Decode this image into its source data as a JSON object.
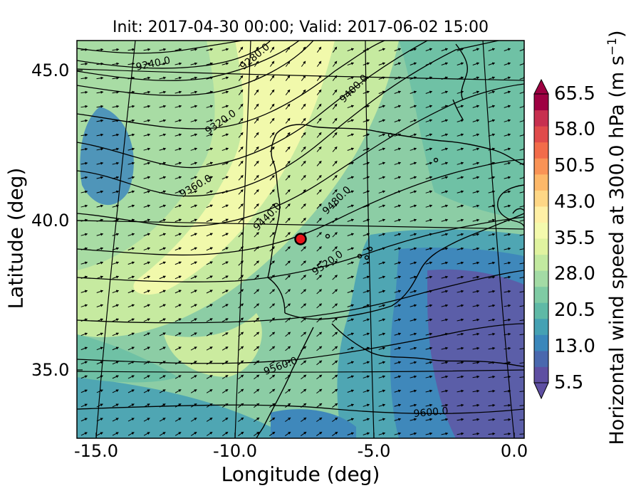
{
  "title": "Init: 2017-04-30 00:00; Valid: 2017-06-02 15:00",
  "xlabel": "Longitude (deg)",
  "ylabel": "Latitude (deg)",
  "colorbar": {
    "label_main": "Horizontal wind speed at 300.0 hPa (m s",
    "label_sup": "−1",
    "label_close": ")",
    "ticks": [
      "65.5",
      "58.0",
      "50.5",
      "43.0",
      "35.5",
      "28.0",
      "20.5",
      "13.0",
      "5.5"
    ],
    "colors": [
      "#5e4fa2",
      "#4a68ae",
      "#3a87bb",
      "#45a1b3",
      "#5fb9a6",
      "#7fcba4",
      "#a3dba5",
      "#c2e9a0",
      "#e0f3a0",
      "#f4faad",
      "#fff0a6",
      "#fed786",
      "#fdb869",
      "#f99356",
      "#f26c4a",
      "#e04b4b",
      "#c7304f",
      "#9e0142"
    ]
  },
  "xticks": [
    "-15.0",
    "-10.0",
    "-5.0",
    "0.0"
  ],
  "yticks": [
    "45.0",
    "40.0",
    "35.0"
  ],
  "contour_labels": [
    "9240.0",
    "9280.0",
    "9320.0",
    "9360.0",
    "9400.0",
    "9440.0",
    "9480.0",
    "9520.0",
    "9560.0",
    "9600.0"
  ],
  "marker": {
    "color": "#e8141b"
  },
  "chart_data": {
    "type": "map",
    "title": "Init: 2017-04-30 00:00; Valid: 2017-06-02 15:00",
    "xlabel": "Longitude (deg)",
    "ylabel": "Latitude (deg)",
    "xlim": [
      -16.0,
      0.3
    ],
    "ylim": [
      32.5,
      46.0
    ],
    "field": "Horizontal wind speed at 300.0 hPa (m s^-1)",
    "colorbar_range": [
      5.5,
      65.5
    ],
    "contour_levels": [
      9240,
      9280,
      9320,
      9360,
      9400,
      9440,
      9480,
      9520,
      9560,
      9600
    ],
    "marker_location": {
      "lon": -7.7,
      "lat": 39.3
    }
  }
}
